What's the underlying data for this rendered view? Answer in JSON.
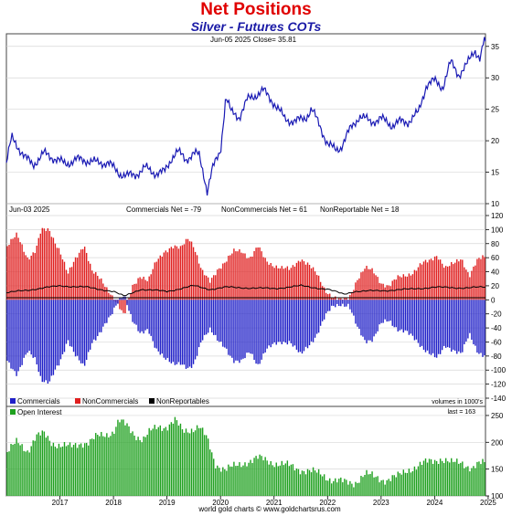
{
  "title": "Net Positions",
  "subtitle": "Silver - Futures COTs",
  "footer": "world gold charts © www.goldchartsrus.com",
  "chart_data": [
    {
      "type": "line",
      "panel": "price",
      "header": "Jun-05  2025    Close= 35.81",
      "ylim": [
        10,
        37
      ],
      "y_ticks": [
        10,
        15,
        20,
        25,
        30,
        35
      ],
      "xlim": [
        2016.5,
        2025.45
      ],
      "color": "#1a1ab4",
      "series": [
        {
          "x": [
            2016.5,
            2016.6,
            2016.7,
            2016.85,
            2017.0,
            2017.2,
            2017.4,
            2017.6,
            2017.8,
            2018.0,
            2018.2,
            2018.4,
            2018.6,
            2018.75,
            2018.9,
            2019.1,
            2019.3,
            2019.45,
            2019.6,
            2019.7,
            2019.85,
            2020.0,
            2020.1,
            2020.2,
            2020.25,
            2020.35,
            2020.5,
            2020.6,
            2020.7,
            2020.85,
            2021.0,
            2021.1,
            2021.3,
            2021.5,
            2021.7,
            2021.9,
            2022.1,
            2022.2,
            2022.35,
            2022.5,
            2022.65,
            2022.75,
            2022.9,
            2023.1,
            2023.3,
            2023.5,
            2023.7,
            2023.85,
            2024.0,
            2024.2,
            2024.35,
            2024.5,
            2024.65,
            2024.8,
            2024.95,
            2025.1,
            2025.25,
            2025.35,
            2025.42
          ],
          "values": [
            16.5,
            20.5,
            19.3,
            17.3,
            16.2,
            18.0,
            17.2,
            16.3,
            17.0,
            16.9,
            16.5,
            16.5,
            14.9,
            14.4,
            14.6,
            15.7,
            14.8,
            15.0,
            17.5,
            18.3,
            17.0,
            18.0,
            17.7,
            14.2,
            12.0,
            15.5,
            18.5,
            27.0,
            24.5,
            23.8,
            26.5,
            27.0,
            28.0,
            26.0,
            23.5,
            23.0,
            23.8,
            25.0,
            22.5,
            19.5,
            18.5,
            19.0,
            21.5,
            24.0,
            23.0,
            23.5,
            22.5,
            23.0,
            23.0,
            24.5,
            29.0,
            29.5,
            28.5,
            32.5,
            30.5,
            32.0,
            34.5,
            33.0,
            35.8
          ]
        }
      ]
    },
    {
      "type": "bar",
      "panel": "net-positions",
      "header_date": "Jun-03  2025",
      "labels": {
        "commercials_net": "Commercials Net = -79",
        "noncommercials_net": "NonCommercials Net = 61",
        "nonreportable_net": "NonReportable Net = 18"
      },
      "ylim": [
        -140,
        120
      ],
      "y_ticks": [
        -140,
        -120,
        -100,
        -80,
        -60,
        -40,
        -20,
        0,
        20,
        40,
        60,
        80,
        100,
        120
      ],
      "xlim": [
        2016.5,
        2025.45
      ],
      "legend": [
        "Commercials",
        "NonCommercials",
        "NonReportables"
      ],
      "units_note": "volumes in 1000's",
      "colors": {
        "commercials": "#2020c8",
        "noncommercials": "#e02020",
        "nonreportables": "#000000"
      },
      "series": [
        {
          "name": "NonCommercials",
          "x": [
            2016.5,
            2016.7,
            2016.9,
            2017.05,
            2017.15,
            2017.3,
            2017.5,
            2017.65,
            2017.8,
            2017.95,
            2018.1,
            2018.3,
            2018.45,
            2018.6,
            2018.7,
            2018.85,
            2019.0,
            2019.15,
            2019.3,
            2019.45,
            2019.6,
            2019.75,
            2019.9,
            2020.0,
            2020.15,
            2020.3,
            2020.45,
            2020.6,
            2020.75,
            2020.9,
            2021.05,
            2021.2,
            2021.35,
            2021.5,
            2021.65,
            2021.8,
            2022.0,
            2022.15,
            2022.3,
            2022.45,
            2022.6,
            2022.75,
            2022.9,
            2023.05,
            2023.2,
            2023.35,
            2023.5,
            2023.65,
            2023.8,
            2023.95,
            2024.1,
            2024.25,
            2024.4,
            2024.55,
            2024.7,
            2024.85,
            2025.0,
            2025.15,
            2025.3,
            2025.42
          ],
          "values": [
            75,
            92,
            60,
            70,
            98,
            100,
            70,
            35,
            60,
            80,
            40,
            25,
            10,
            -10,
            -25,
            20,
            35,
            25,
            55,
            70,
            75,
            72,
            90,
            78,
            40,
            25,
            45,
            55,
            68,
            70,
            60,
            75,
            55,
            50,
            45,
            42,
            60,
            50,
            35,
            15,
            5,
            -2,
            2,
            30,
            45,
            40,
            25,
            20,
            30,
            35,
            40,
            50,
            55,
            65,
            45,
            50,
            60,
            35,
            55,
            61
          ]
        },
        {
          "name": "Commercials",
          "x": [
            2016.5,
            2016.7,
            2016.9,
            2017.05,
            2017.15,
            2017.3,
            2017.5,
            2017.65,
            2017.8,
            2017.95,
            2018.1,
            2018.3,
            2018.45,
            2018.6,
            2018.7,
            2018.85,
            2019.0,
            2019.15,
            2019.3,
            2019.45,
            2019.6,
            2019.75,
            2019.9,
            2020.0,
            2020.15,
            2020.3,
            2020.45,
            2020.6,
            2020.75,
            2020.9,
            2021.05,
            2021.2,
            2021.35,
            2021.5,
            2021.65,
            2021.8,
            2022.0,
            2022.15,
            2022.3,
            2022.45,
            2022.6,
            2022.75,
            2022.9,
            2023.05,
            2023.2,
            2023.35,
            2023.5,
            2023.65,
            2023.8,
            2023.95,
            2024.1,
            2024.25,
            2024.4,
            2024.55,
            2024.7,
            2024.85,
            2025.0,
            2025.15,
            2025.3,
            2025.42
          ],
          "values": [
            -85,
            -105,
            -75,
            -85,
            -112,
            -118,
            -90,
            -55,
            -80,
            -98,
            -60,
            -40,
            -25,
            0,
            10,
            -30,
            -50,
            -40,
            -70,
            -85,
            -90,
            -88,
            -100,
            -95,
            -55,
            -40,
            -60,
            -70,
            -85,
            -88,
            -75,
            -92,
            -70,
            -65,
            -60,
            -58,
            -80,
            -65,
            -48,
            -25,
            -10,
            -5,
            -8,
            -40,
            -58,
            -55,
            -35,
            -30,
            -40,
            -45,
            -55,
            -65,
            -75,
            -85,
            -65,
            -70,
            -78,
            -50,
            -72,
            -79
          ]
        },
        {
          "name": "NonReportables",
          "x": [
            2016.5,
            2017.0,
            2017.5,
            2018.0,
            2018.5,
            2018.7,
            2019.0,
            2019.5,
            2020.0,
            2020.3,
            2020.6,
            2021.0,
            2021.5,
            2022.0,
            2022.5,
            2022.8,
            2023.0,
            2023.5,
            2024.0,
            2024.5,
            2025.0,
            2025.42
          ],
          "values": [
            10,
            15,
            20,
            18,
            12,
            5,
            15,
            12,
            20,
            15,
            18,
            17,
            16,
            20,
            15,
            8,
            12,
            13,
            15,
            18,
            17,
            18
          ]
        }
      ]
    },
    {
      "type": "bar",
      "panel": "open-interest",
      "legend": [
        "Open Interest"
      ],
      "last_label": "last = 163",
      "ylim": [
        100,
        255
      ],
      "y_ticks": [
        100,
        150,
        200,
        250
      ],
      "xlim": [
        2016.5,
        2025.45
      ],
      "color": "#1ea01e",
      "series": [
        {
          "name": "Open Interest",
          "x": [
            2016.5,
            2016.7,
            2016.9,
            2017.05,
            2017.2,
            2017.35,
            2017.5,
            2017.7,
            2017.9,
            2018.05,
            2018.2,
            2018.35,
            2018.5,
            2018.6,
            2018.75,
            2018.9,
            2019.05,
            2019.2,
            2019.35,
            2019.5,
            2019.65,
            2019.8,
            2019.95,
            2020.1,
            2020.25,
            2020.4,
            2020.6,
            2020.8,
            2021.0,
            2021.2,
            2021.4,
            2021.6,
            2021.8,
            2022.0,
            2022.2,
            2022.4,
            2022.6,
            2022.8,
            2023.0,
            2023.2,
            2023.4,
            2023.6,
            2023.8,
            2024.0,
            2024.2,
            2024.4,
            2024.6,
            2024.8,
            2025.0,
            2025.2,
            2025.42
          ],
          "values": [
            180,
            200,
            185,
            210,
            215,
            200,
            195,
            190,
            200,
            200,
            210,
            215,
            220,
            240,
            230,
            215,
            205,
            220,
            230,
            230,
            240,
            220,
            225,
            230,
            205,
            160,
            150,
            155,
            165,
            170,
            165,
            160,
            155,
            150,
            145,
            140,
            130,
            125,
            125,
            140,
            135,
            130,
            135,
            150,
            155,
            165,
            170,
            160,
            165,
            150,
            163
          ]
        }
      ]
    }
  ],
  "x_axis": {
    "years": [
      "2017",
      "2018",
      "2019",
      "2020",
      "2021",
      "2022",
      "2023",
      "2024",
      "2025"
    ]
  }
}
